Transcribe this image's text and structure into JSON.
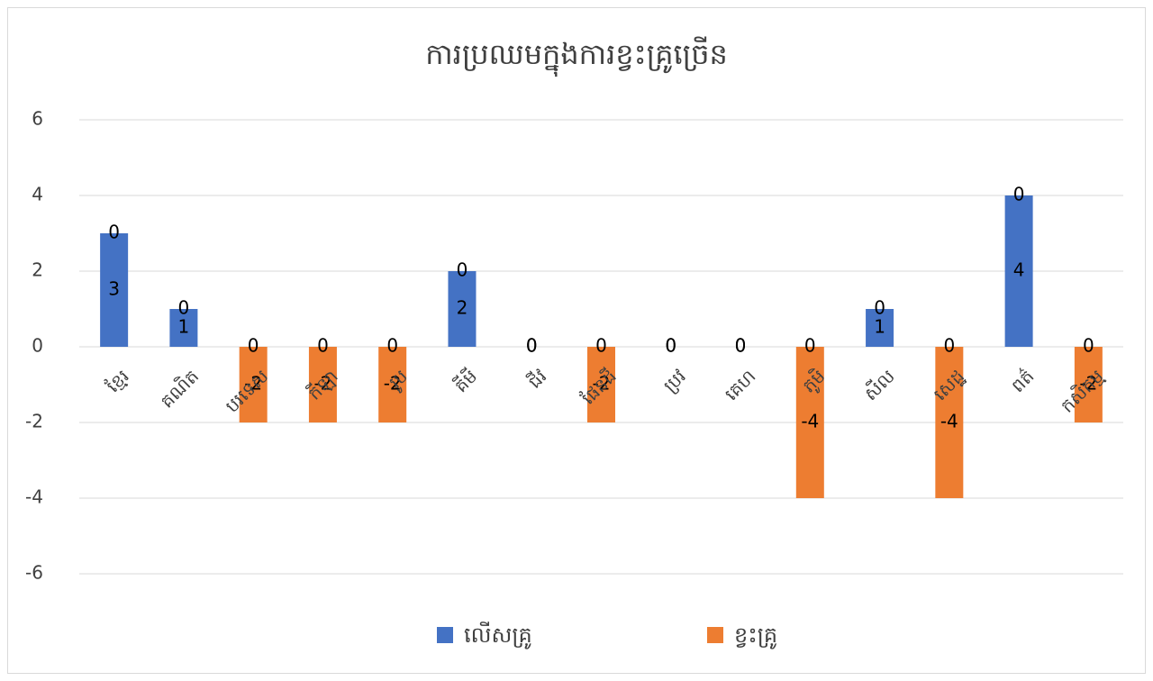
{
  "chart_data": {
    "type": "bar",
    "title": "ការប្រឈមក្នុងការខ្វះគ្រូច្រើន",
    "categories": [
      "ខ្មែរ",
      "គណិត",
      "បរទេស",
      "កីឡា",
      "រូប",
      "គីមី",
      "ជីវ",
      "ផែនដី",
      "ប្រវ",
      "គេហ",
      "ភូមិ",
      "សីល",
      "សេដ្ឋ",
      "ពត៌",
      "កសិកម្ម"
    ],
    "series": [
      {
        "name": "លើសគ្រូ",
        "color": "#4472c4",
        "values": [
          3,
          1,
          0,
          0,
          0,
          2,
          0,
          0,
          0,
          0,
          0,
          1,
          0,
          4,
          0
        ]
      },
      {
        "name": "ខ្វះគ្រូ",
        "color": "#ed7d31",
        "values": [
          0,
          0,
          -2,
          -2,
          -2,
          0,
          0,
          -2,
          0,
          0,
          -4,
          0,
          -4,
          0,
          -2
        ]
      }
    ],
    "ylim": [
      -6,
      6
    ],
    "yticks": [
      -6,
      -4,
      -2,
      0,
      2,
      4,
      6
    ],
    "grid": true,
    "legend": "bottom"
  }
}
